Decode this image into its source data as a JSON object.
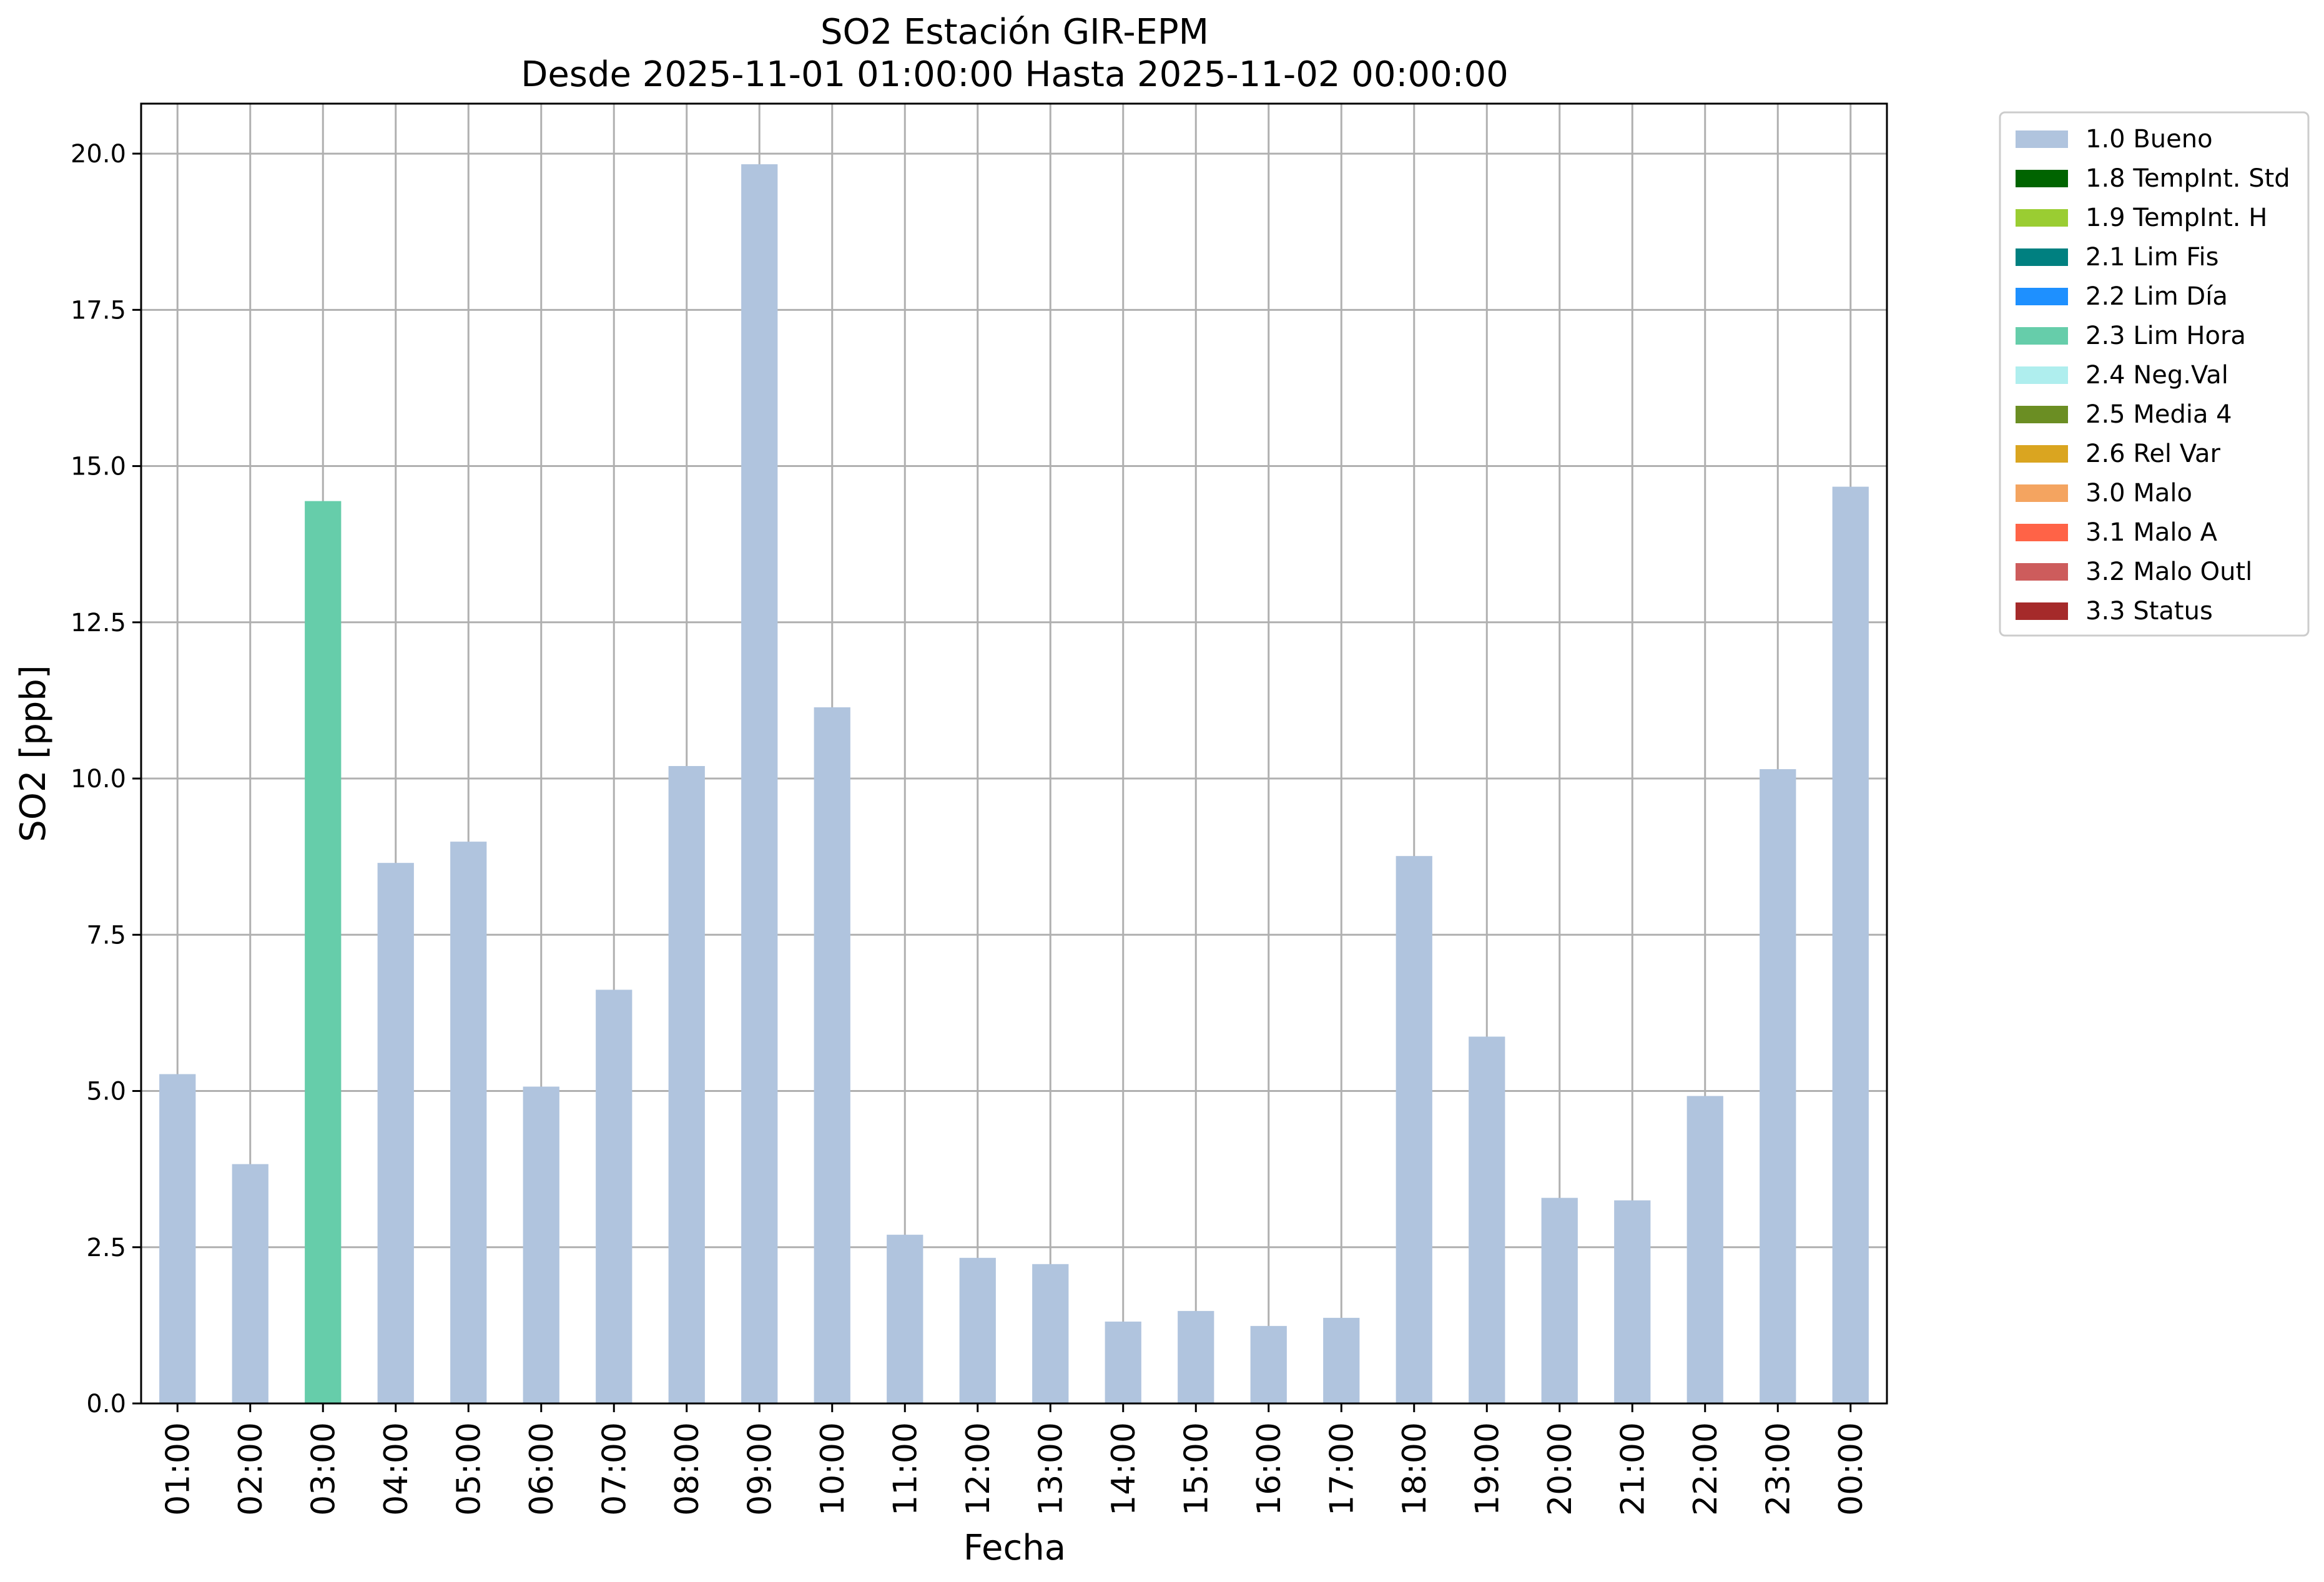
{
  "chart_data": {
    "type": "bar",
    "title": [
      "SO2 Estación GIR-EPM",
      "Desde 2025-11-01 01:00:00 Hasta 2025-11-02 00:00:00"
    ],
    "xlabel": "Fecha",
    "ylabel": "SO2 [ppb]",
    "ylim": [
      0,
      20.8
    ],
    "yticks": [
      "0.0",
      "2.5",
      "5.0",
      "7.5",
      "10.0",
      "12.5",
      "15.0",
      "17.5",
      "20.0"
    ],
    "grid": true,
    "legend_position": "outside-top-right",
    "categories": [
      "01:00",
      "02:00",
      "03:00",
      "04:00",
      "05:00",
      "06:00",
      "07:00",
      "08:00",
      "09:00",
      "10:00",
      "11:00",
      "12:00",
      "13:00",
      "14:00",
      "15:00",
      "16:00",
      "17:00",
      "18:00",
      "19:00",
      "20:00",
      "21:00",
      "22:00",
      "23:00",
      "00:00"
    ],
    "values": [
      5.27,
      3.83,
      14.44,
      8.65,
      8.99,
      5.07,
      6.62,
      10.2,
      19.83,
      11.14,
      2.7,
      2.33,
      2.23,
      1.31,
      1.48,
      1.24,
      1.37,
      8.76,
      5.87,
      3.29,
      3.25,
      4.92,
      10.15,
      14.67
    ],
    "flags": [
      "1.0 Bueno",
      "1.0 Bueno",
      "2.3 Lim Hora",
      "1.0 Bueno",
      "1.0 Bueno",
      "1.0 Bueno",
      "1.0 Bueno",
      "1.0 Bueno",
      "1.0 Bueno",
      "1.0 Bueno",
      "1.0 Bueno",
      "1.0 Bueno",
      "1.0 Bueno",
      "1.0 Bueno",
      "1.0 Bueno",
      "1.0 Bueno",
      "1.0 Bueno",
      "1.0 Bueno",
      "1.0 Bueno",
      "1.0 Bueno",
      "1.0 Bueno",
      "1.0 Bueno",
      "1.0 Bueno",
      "1.0 Bueno"
    ],
    "legend": [
      {
        "label": "1.0 Bueno",
        "color": "#b0c4de"
      },
      {
        "label": "1.8 TempInt. Std",
        "color": "#006400"
      },
      {
        "label": "1.9 TempInt. H",
        "color": "#9acd32"
      },
      {
        "label": "2.1 Lim Fis",
        "color": "#008080"
      },
      {
        "label": "2.2 Lim Día",
        "color": "#1e90ff"
      },
      {
        "label": "2.3 Lim Hora",
        "color": "#66cdaa"
      },
      {
        "label": "2.4 Neg.Val",
        "color": "#afeeee"
      },
      {
        "label": "2.5 Media 4",
        "color": "#6b8e23"
      },
      {
        "label": "2.6 Rel Var",
        "color": "#daa520"
      },
      {
        "label": "3.0 Malo",
        "color": "#f4a460"
      },
      {
        "label": "3.1 Malo A",
        "color": "#ff6347"
      },
      {
        "label": "3.2 Malo Outl",
        "color": "#cd5c5c"
      },
      {
        "label": "3.3 Status",
        "color": "#a52a2a"
      }
    ]
  }
}
